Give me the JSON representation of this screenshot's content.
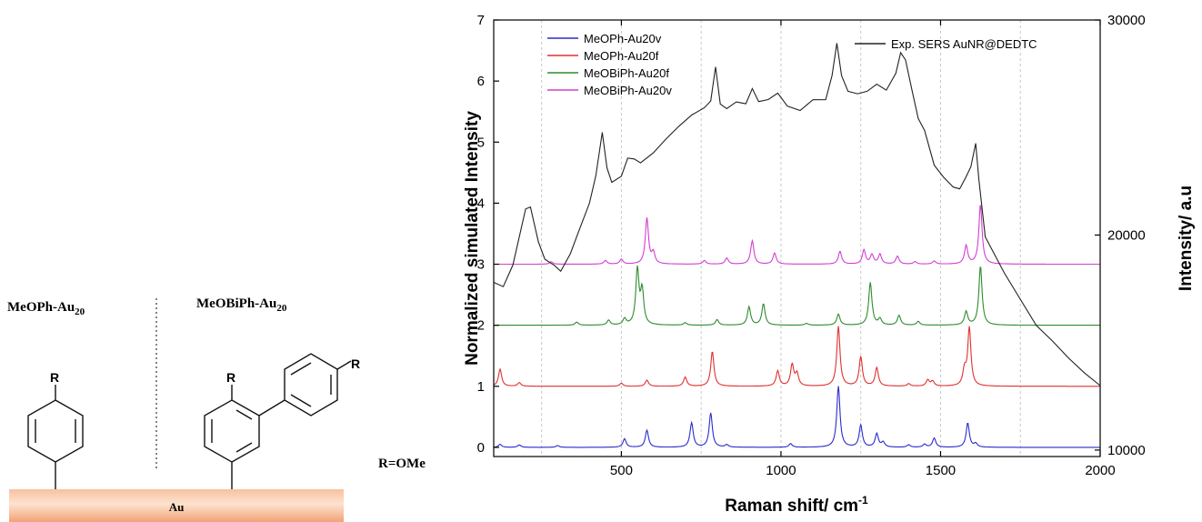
{
  "scheme": {
    "left_label": "MeOPh-Au",
    "left_sub": "20",
    "right_label": "MeOBiPh-Au",
    "right_sub": "20",
    "substituent": "R",
    "r_definition": "R=OMe",
    "surface_label": "Au",
    "colors": {
      "surface_light": "#fde3cf",
      "surface_dark": "#f4a77c"
    }
  },
  "chart_data": {
    "type": "line",
    "xlabel": "Raman shift/ cm",
    "xlabel_sup": "-1",
    "ylabel": "Normalized simulated Intensity",
    "ylabel_right": "Intensity/ a.u",
    "xlim": [
      100,
      2000
    ],
    "ylim": [
      -0.15,
      7
    ],
    "ylim_right": [
      9700,
      30000
    ],
    "xticks": [
      "500",
      "1000",
      "1500",
      "2000"
    ],
    "yticks": [
      "0",
      "1",
      "2",
      "3",
      "4",
      "5",
      "6",
      "7"
    ],
    "yticks_right": [
      "10000",
      "20000",
      "30000"
    ],
    "grid": "vertical dashed",
    "legend_left": "top-left",
    "legend_right": "top-right",
    "series": [
      {
        "name": "MeOPh-Au20v",
        "color": "#2b2bcc",
        "axis": "left",
        "baseline": 0,
        "peaks": [
          [
            120,
            0.05
          ],
          [
            180,
            0.04
          ],
          [
            300,
            0.03
          ],
          [
            510,
            0.14
          ],
          [
            580,
            0.28
          ],
          [
            720,
            0.4
          ],
          [
            780,
            0.56
          ],
          [
            830,
            0.04
          ],
          [
            1030,
            0.06
          ],
          [
            1180,
            1.0
          ],
          [
            1250,
            0.36
          ],
          [
            1300,
            0.22
          ],
          [
            1320,
            0.08
          ],
          [
            1400,
            0.04
          ],
          [
            1450,
            0.05
          ],
          [
            1480,
            0.15
          ],
          [
            1585,
            0.4
          ],
          [
            1610,
            0.06
          ]
        ]
      },
      {
        "name": "MeOPh-Au20f",
        "color": "#e03030",
        "axis": "left",
        "baseline": 1,
        "peaks": [
          [
            120,
            0.28
          ],
          [
            180,
            0.06
          ],
          [
            500,
            0.05
          ],
          [
            580,
            0.1
          ],
          [
            700,
            0.15
          ],
          [
            785,
            0.57
          ],
          [
            990,
            0.25
          ],
          [
            1035,
            0.35
          ],
          [
            1050,
            0.2
          ],
          [
            1180,
            0.98
          ],
          [
            1250,
            0.48
          ],
          [
            1300,
            0.3
          ],
          [
            1400,
            0.04
          ],
          [
            1460,
            0.1
          ],
          [
            1475,
            0.08
          ],
          [
            1575,
            0.25
          ],
          [
            1590,
            0.95
          ]
        ]
      },
      {
        "name": "MeOBiPh-Au20f",
        "color": "#2e8b2e",
        "axis": "left",
        "baseline": 2,
        "peaks": [
          [
            360,
            0.05
          ],
          [
            460,
            0.08
          ],
          [
            510,
            0.1
          ],
          [
            550,
            0.9
          ],
          [
            565,
            0.55
          ],
          [
            700,
            0.04
          ],
          [
            800,
            0.09
          ],
          [
            900,
            0.3
          ],
          [
            945,
            0.35
          ],
          [
            1080,
            0.03
          ],
          [
            1180,
            0.18
          ],
          [
            1280,
            0.7
          ],
          [
            1310,
            0.1
          ],
          [
            1370,
            0.16
          ],
          [
            1430,
            0.06
          ],
          [
            1580,
            0.22
          ],
          [
            1625,
            0.97
          ]
        ]
      },
      {
        "name": "MeOBiPh-Au20v",
        "color": "#d23fd2",
        "axis": "left",
        "baseline": 3,
        "peaks": [
          [
            280,
            0.04
          ],
          [
            450,
            0.06
          ],
          [
            500,
            0.08
          ],
          [
            580,
            0.75
          ],
          [
            600,
            0.18
          ],
          [
            760,
            0.06
          ],
          [
            830,
            0.1
          ],
          [
            910,
            0.38
          ],
          [
            980,
            0.18
          ],
          [
            1185,
            0.21
          ],
          [
            1260,
            0.23
          ],
          [
            1285,
            0.15
          ],
          [
            1310,
            0.16
          ],
          [
            1365,
            0.13
          ],
          [
            1420,
            0.04
          ],
          [
            1480,
            0.05
          ],
          [
            1580,
            0.3
          ],
          [
            1625,
            0.98
          ]
        ]
      },
      {
        "name": "Exp. SERS AuNR@DEDTC",
        "color": "#222222",
        "axis": "right",
        "x": [
          100,
          130,
          160,
          200,
          215,
          240,
          260,
          290,
          310,
          340,
          370,
          400,
          420,
          440,
          455,
          470,
          500,
          520,
          540,
          560,
          600,
          640,
          680,
          720,
          760,
          780,
          795,
          810,
          830,
          860,
          890,
          910,
          930,
          960,
          990,
          1020,
          1060,
          1100,
          1140,
          1160,
          1175,
          1190,
          1210,
          1240,
          1270,
          1300,
          1330,
          1360,
          1375,
          1390,
          1410,
          1430,
          1450,
          1480,
          1510,
          1540,
          1560,
          1580,
          1595,
          1610,
          1620,
          1640,
          1700,
          1750,
          1800,
          1850,
          1900,
          1950,
          2000
        ],
        "y": [
          17800,
          17500,
          18500,
          21200,
          21400,
          19800,
          18900,
          18500,
          18200,
          19100,
          20400,
          21600,
          22800,
          24700,
          23000,
          22400,
          22800,
          23700,
          23600,
          23300,
          23700,
          24400,
          25100,
          25700,
          26000,
          26200,
          27700,
          26000,
          25900,
          26300,
          26200,
          26800,
          26100,
          26200,
          26600,
          26100,
          25900,
          26300,
          26200,
          27300,
          28900,
          27500,
          26800,
          26600,
          26600,
          26900,
          26700,
          27600,
          28600,
          28200,
          26700,
          25300,
          24800,
          23300,
          22800,
          22300,
          22100,
          22600,
          23100,
          24300,
          22700,
          20000,
          18200,
          16900,
          15700,
          15100,
          14400,
          13700,
          13000
        ]
      }
    ]
  }
}
